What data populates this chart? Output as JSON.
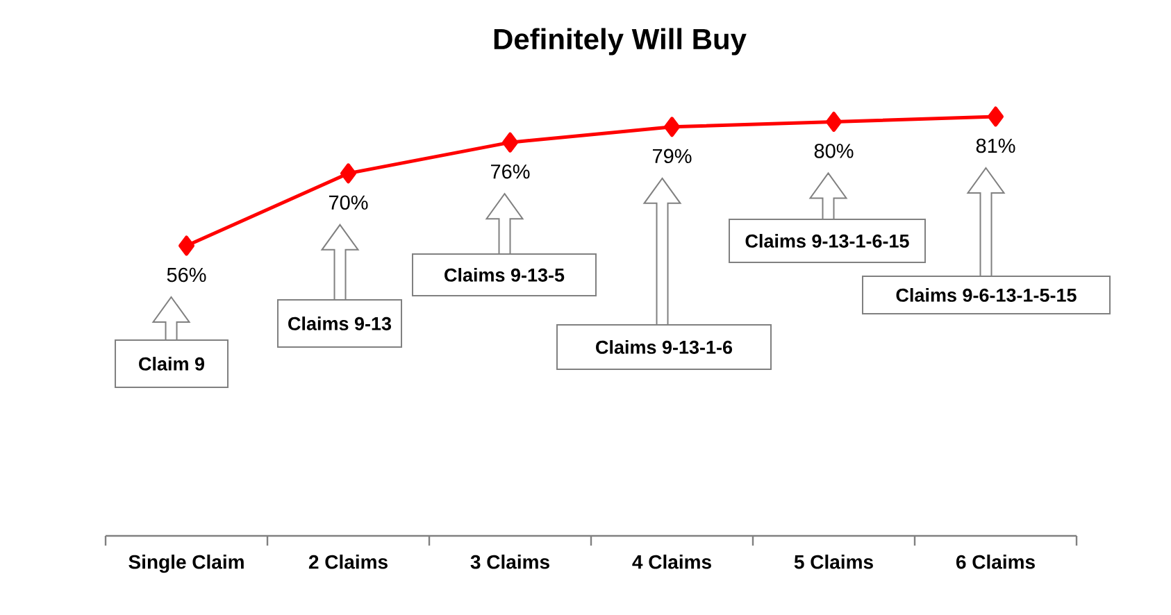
{
  "chart_data": {
    "type": "line",
    "title": "Definitely Will Buy",
    "categories": [
      "Single Claim",
      "2 Claims",
      "3 Claims",
      "4 Claims",
      "5 Claims",
      "6 Claims"
    ],
    "values": [
      56,
      70,
      76,
      79,
      80,
      81
    ],
    "value_labels": [
      "56%",
      "70%",
      "76%",
      "79%",
      "80%",
      "81%"
    ],
    "color": "#ff0000",
    "marker": "diamond",
    "line_style": "solid",
    "tick_labels": "x",
    "annotations": [
      "Claim 9",
      "Claims 9-13",
      "Claims 9-13-5",
      "Claims 9-13-1-6",
      "Claims 9-13-1-6-15",
      "Claims 9-6-13-1-5-15"
    ]
  }
}
